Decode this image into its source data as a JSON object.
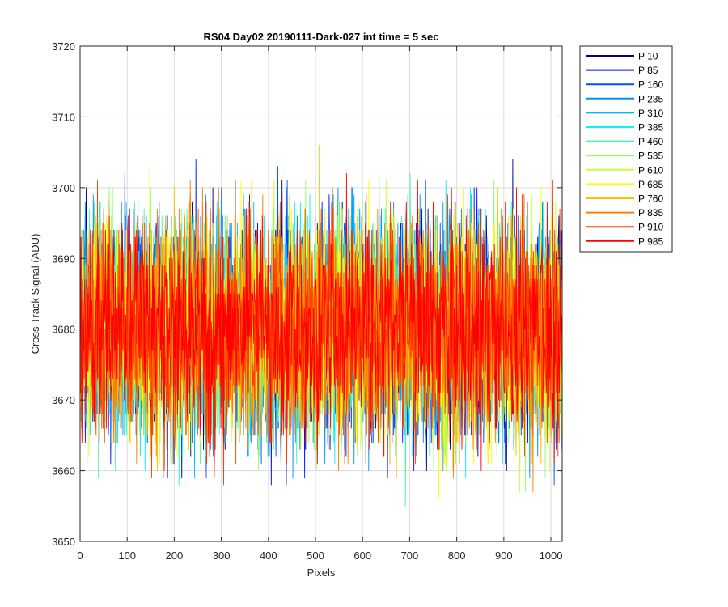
{
  "chart_data": {
    "type": "line",
    "title": "RS04 Day02 20190111-Dark-027 int time = 5 sec",
    "xlabel": "Pixels",
    "ylabel": "Cross Track Signal (ADU)",
    "xlim": [
      0,
      1024
    ],
    "ylim": [
      3650,
      3720
    ],
    "xticks": [
      0,
      100,
      200,
      300,
      400,
      500,
      600,
      700,
      800,
      900,
      1000
    ],
    "yticks": [
      3650,
      3660,
      3670,
      3680,
      3690,
      3700,
      3710,
      3720
    ],
    "grid": true,
    "legend_position": "outside-top-right",
    "noise": {
      "mean": 3680,
      "sigma": 7.5,
      "min": 3652,
      "max": 3711,
      "n_points": 1024
    },
    "series": [
      {
        "name": "P 10",
        "color": "#00008f"
      },
      {
        "name": "P 85",
        "color": "#0010ff"
      },
      {
        "name": "P 160",
        "color": "#0050ff"
      },
      {
        "name": "P 235",
        "color": "#0090ff"
      },
      {
        "name": "P 310",
        "color": "#00b8ff"
      },
      {
        "name": "P 385",
        "color": "#10f0ee"
      },
      {
        "name": "P 460",
        "color": "#50f0b0"
      },
      {
        "name": "P 535",
        "color": "#90ff70"
      },
      {
        "name": "P 610",
        "color": "#c8ff38"
      },
      {
        "name": "P 685",
        "color": "#ffff00"
      },
      {
        "name": "P 760",
        "color": "#ffc000"
      },
      {
        "name": "P 835",
        "color": "#ff8000"
      },
      {
        "name": "P 910",
        "color": "#ff4000"
      },
      {
        "name": "P 985",
        "color": "#ff0000"
      }
    ]
  }
}
